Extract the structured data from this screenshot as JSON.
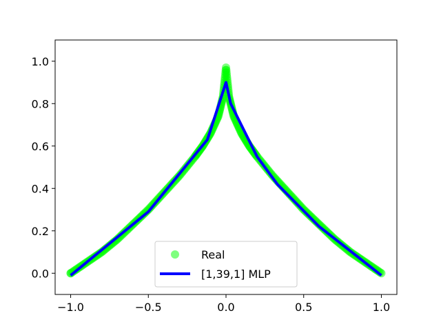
{
  "chart_data": {
    "type": "scatter",
    "xlim": [
      -1.1,
      1.1
    ],
    "ylim": [
      -0.1,
      1.1
    ],
    "x_ticks": [
      -1.0,
      -0.5,
      0.0,
      0.5,
      1.0
    ],
    "x_tick_labels": [
      "−1.0",
      "−0.5",
      "0.0",
      "0.5",
      "1.0"
    ],
    "y_ticks": [
      0.0,
      0.2,
      0.4,
      0.6,
      0.8,
      1.0
    ],
    "y_tick_labels": [
      "0.0",
      "0.2",
      "0.4",
      "0.6",
      "0.8",
      "1.0"
    ],
    "grid": false,
    "legend_position": "lower-center",
    "series": [
      {
        "name": "Real",
        "kind": "scatter",
        "color": "#00ff00",
        "alpha": 0.5,
        "x": [
          -1.0,
          -0.9,
          -0.8,
          -0.7,
          -0.6,
          -0.5,
          -0.4,
          -0.3,
          -0.2,
          -0.15,
          -0.1,
          -0.05,
          -0.02,
          0.0,
          0.02,
          0.05,
          0.1,
          0.15,
          0.2,
          0.3,
          0.4,
          0.5,
          0.6,
          0.7,
          0.8,
          0.9,
          1.0
        ],
        "y": [
          0.0,
          0.05,
          0.1,
          0.16,
          0.23,
          0.3,
          0.38,
          0.46,
          0.55,
          0.6,
          0.66,
          0.74,
          0.83,
          0.97,
          0.83,
          0.74,
          0.66,
          0.6,
          0.55,
          0.46,
          0.38,
          0.3,
          0.23,
          0.16,
          0.1,
          0.05,
          0.0
        ]
      },
      {
        "name": "[1,39,1] MLP",
        "kind": "line",
        "color": "#0000ff",
        "x": [
          -1.0,
          -0.5,
          -0.12,
          0.0,
          0.03,
          0.2,
          0.33,
          0.6,
          1.0
        ],
        "y": [
          -0.01,
          0.29,
          0.63,
          0.9,
          0.8,
          0.55,
          0.42,
          0.22,
          -0.01
        ]
      }
    ]
  }
}
